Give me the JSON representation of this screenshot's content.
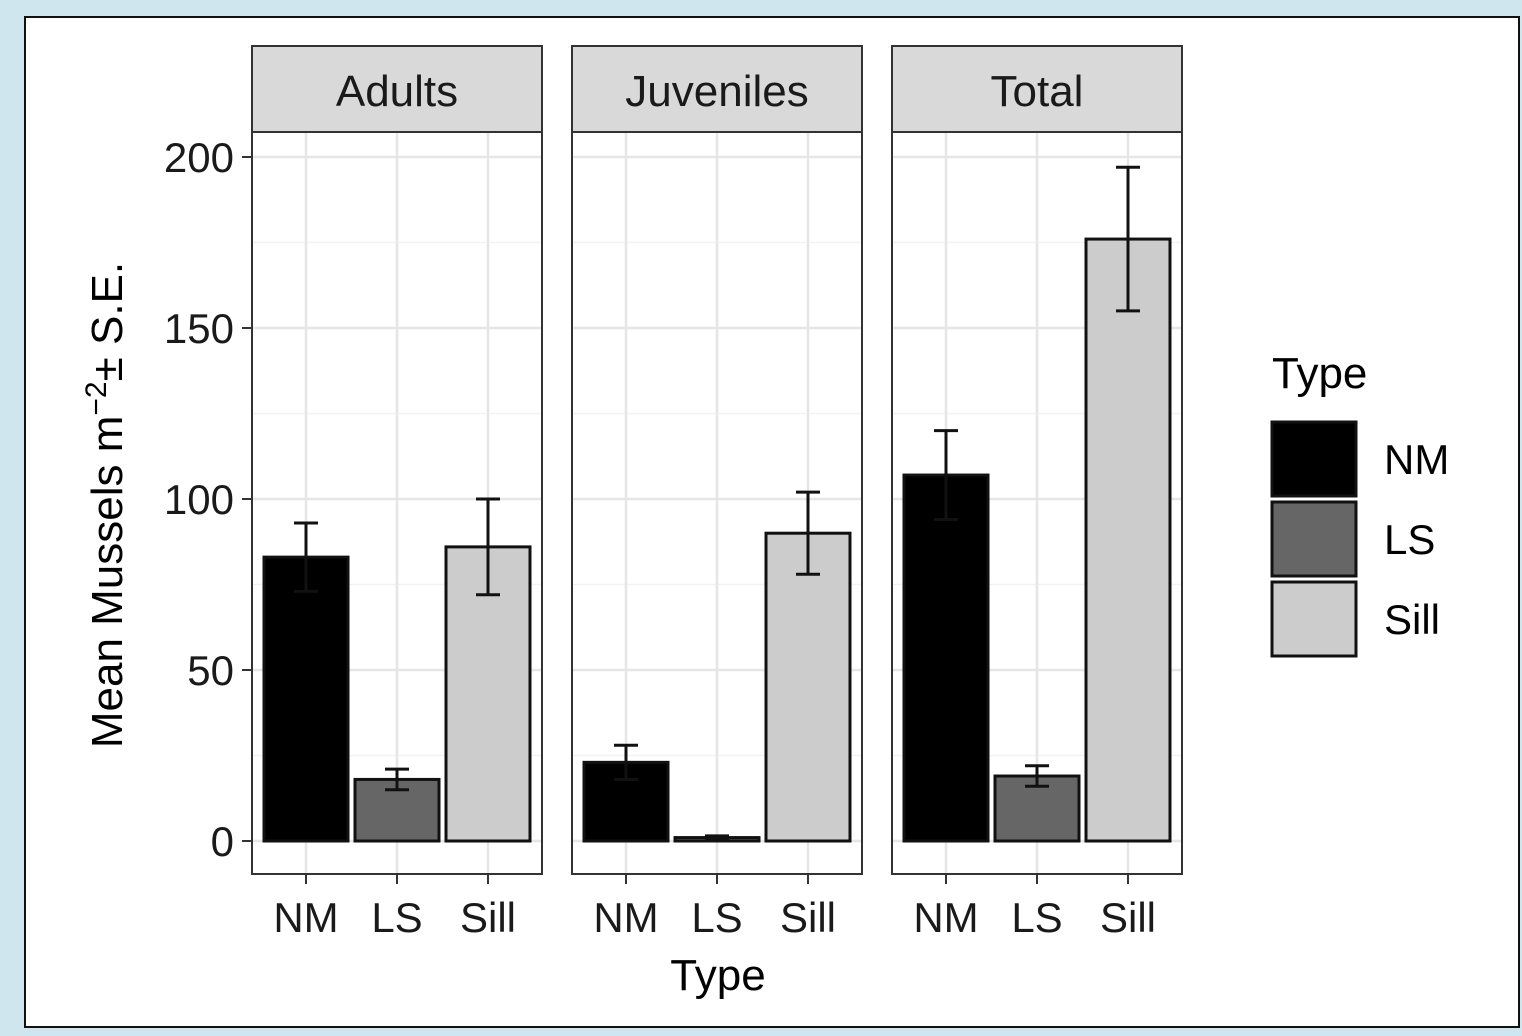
{
  "chart_data": {
    "type": "bar",
    "facets": [
      "Adults",
      "Juveniles",
      "Total"
    ],
    "categories": [
      "NM",
      "LS",
      "Sill"
    ],
    "series": [
      {
        "facet": "Adults",
        "values": [
          83,
          18,
          86
        ],
        "se": [
          10,
          3,
          14
        ]
      },
      {
        "facet": "Juveniles",
        "values": [
          23,
          1,
          90
        ],
        "se": [
          5,
          0.5,
          12
        ]
      },
      {
        "facet": "Total",
        "values": [
          107,
          19,
          176
        ],
        "se": [
          13,
          3,
          21
        ]
      }
    ],
    "xlabel": "Type",
    "ylabel_parts": {
      "main": "Mean Mussels m",
      "sup": "−2",
      "tail": "± S.E."
    },
    "ylim": [
      -9,
      200
    ],
    "yticks": [
      0,
      50,
      100,
      150,
      200
    ],
    "grid": true,
    "legend": {
      "title": "Type",
      "position": "right",
      "items": [
        "NM",
        "LS",
        "Sill"
      ]
    },
    "colors": {
      "NM": "#000000",
      "LS": "#666666",
      "Sill": "#cccccc"
    }
  }
}
